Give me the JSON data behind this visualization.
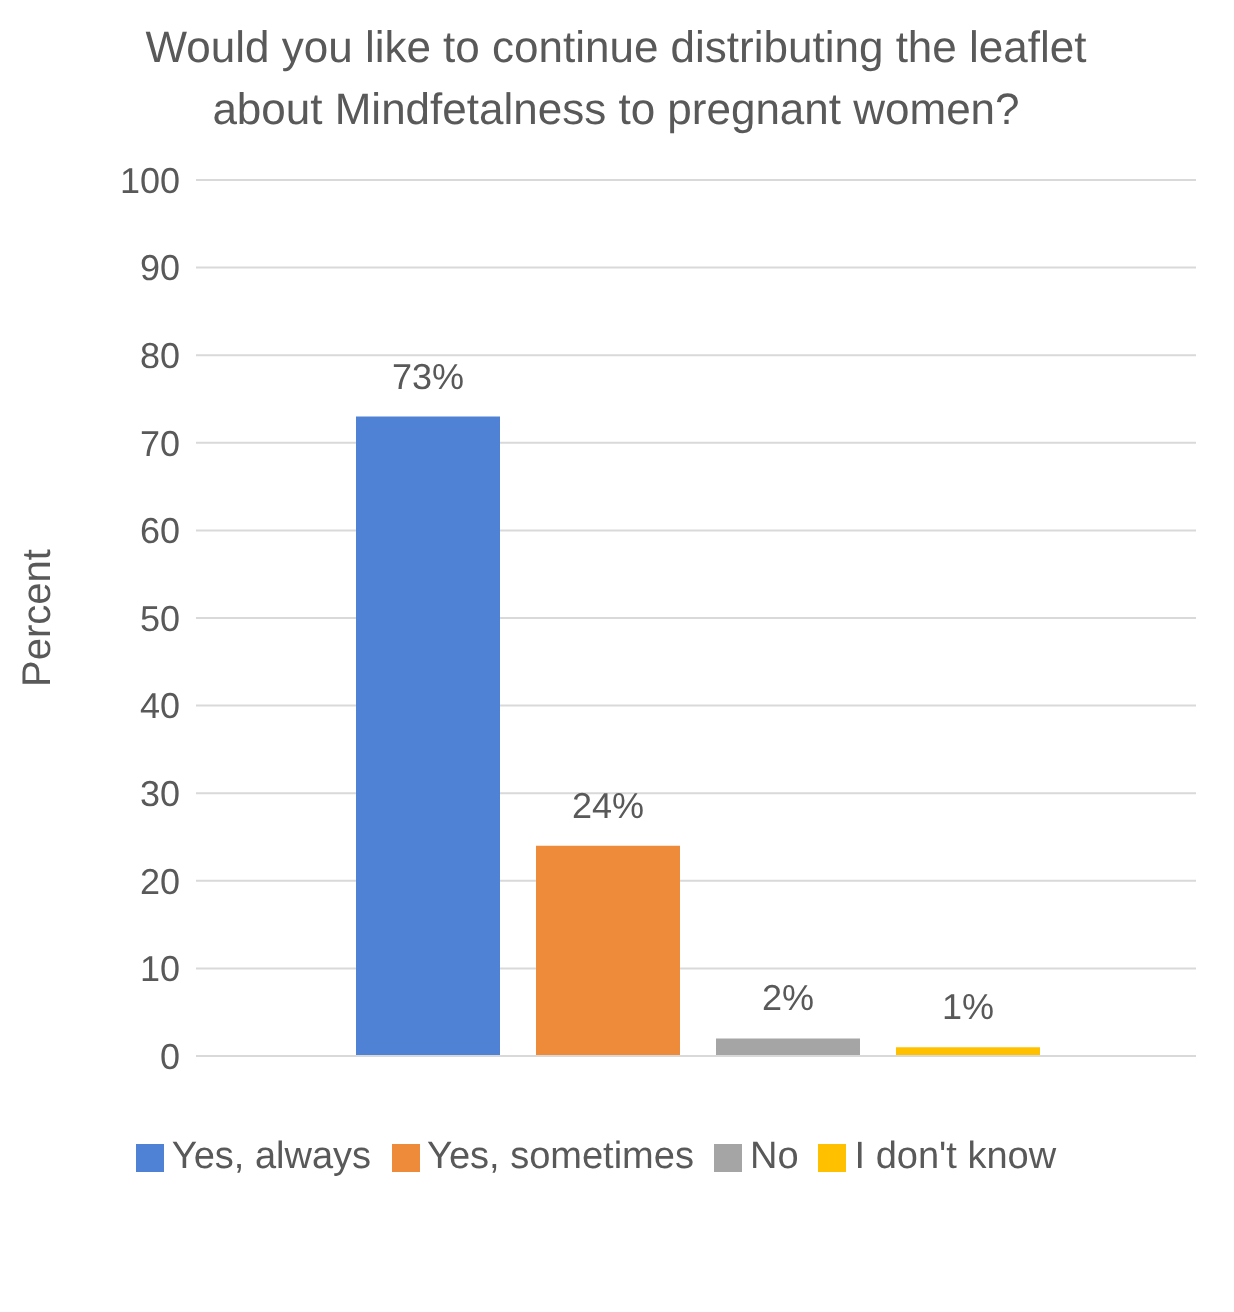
{
  "chart_data": {
    "type": "bar",
    "title": "Would you like to continue distributing the leaflet about Mindfetalness to pregnant women?",
    "ylabel": "Percent",
    "categories": [
      null
    ],
    "series": [
      {
        "name": "Yes, always",
        "color": "#4f81d4",
        "values": [
          73
        ],
        "value_labels": [
          "73%"
        ]
      },
      {
        "name": "Yes, sometimes",
        "color": "#ed8b3a",
        "values": [
          24
        ],
        "value_labels": [
          "24%"
        ]
      },
      {
        "name": "No",
        "color": "#a5a5a5",
        "values": [
          2
        ],
        "value_labels": [
          "2%"
        ]
      },
      {
        "name": "I don't know",
        "color": "#ffc000",
        "values": [
          1
        ],
        "value_labels": [
          "1%"
        ]
      }
    ],
    "ylim": [
      0,
      100
    ],
    "yticks": [
      0,
      10,
      20,
      30,
      40,
      50,
      60,
      70,
      80,
      90,
      100
    ],
    "grid": "y",
    "legend": "bottom"
  }
}
